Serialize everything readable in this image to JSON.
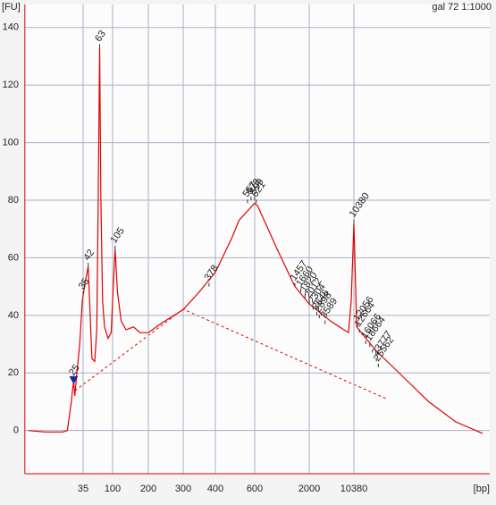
{
  "chart_data": {
    "type": "line",
    "y_label": "[FU]",
    "x_label": "[bp]",
    "sample_label": "gal 72 1:1000",
    "color": "#e00000",
    "x": [
      5,
      9,
      17,
      20,
      23,
      24,
      25,
      26,
      28,
      31,
      34,
      38,
      42,
      45,
      48,
      53,
      57,
      60,
      63,
      66,
      70,
      75,
      85,
      95,
      100,
      105,
      110,
      118,
      130,
      150,
      170,
      200,
      230,
      300,
      345,
      400,
      475,
      510,
      600,
      640,
      807,
      984,
      1457,
      2000,
      4400,
      8500,
      9400,
      10380,
      11500,
      22900,
      61200,
      164000,
      444000,
      1190000
    ],
    "values": [
      0,
      -0.5,
      -0.5,
      0,
      10,
      14,
      17,
      12,
      20,
      30,
      45,
      52,
      57,
      40,
      25,
      24,
      35,
      80,
      133,
      80,
      45,
      36,
      32,
      34,
      45,
      63,
      48,
      38,
      35,
      36,
      34,
      34,
      37,
      42,
      48,
      55,
      67,
      73,
      79,
      78,
      70,
      63,
      50,
      44,
      38,
      34,
      45,
      72,
      36,
      28,
      19,
      10,
      3,
      -1
    ],
    "peaks": [
      {
        "size": 25,
        "fu": 17,
        "color": "#000000"
      },
      {
        "size": 35,
        "fu": 47,
        "color": "#6a9a2a"
      },
      {
        "size": 42,
        "fu": 57,
        "color": "#000000"
      },
      {
        "size": 63,
        "fu": 133,
        "color": "#000000"
      },
      {
        "size": 105,
        "fu": 63,
        "color": "#000000"
      },
      {
        "size": 378,
        "fu": 50,
        "color": "#000000"
      },
      {
        "size": 557,
        "fu": 79,
        "color": "#000000"
      },
      {
        "size": 578,
        "fu": 80,
        "color": "#000000"
      },
      {
        "size": 599,
        "fu": 80,
        "color": "#000000"
      },
      {
        "size": 621,
        "fu": 79,
        "color": "#000000"
      },
      {
        "size": 1457,
        "fu": 50,
        "color": "#000000"
      },
      {
        "size": 1660,
        "fu": 48,
        "color": "#000000"
      },
      {
        "size": 1820,
        "fu": 46,
        "color": "#000000"
      },
      {
        "size": 2012,
        "fu": 44,
        "color": "#000000"
      },
      {
        "size": 2304,
        "fu": 42,
        "color": "#000000"
      },
      {
        "size": 2646,
        "fu": 40,
        "color": "#000000"
      },
      {
        "size": 2898,
        "fu": 39,
        "color": "#000000"
      },
      {
        "size": 3589,
        "fu": 37,
        "color": "#000000"
      },
      {
        "size": 10380,
        "fu": 72,
        "color": "#8a3ae0"
      },
      {
        "size": 12056,
        "fu": 36,
        "color": "#000000"
      },
      {
        "size": 12664,
        "fu": 34,
        "color": "#000000"
      },
      {
        "size": 16066,
        "fu": 30,
        "color": "#000000"
      },
      {
        "size": 18664,
        "fu": 29,
        "color": "#000000"
      },
      {
        "size": 23777,
        "fu": 24,
        "color": "#000000"
      },
      {
        "size": 25562,
        "fu": 22,
        "color": "#000000"
      }
    ],
    "xlim": [
      4.4,
      1550000
    ],
    "xticks": [
      35,
      100,
      200,
      300,
      400,
      600,
      2000,
      10380
    ],
    "ylim": [
      -15,
      148
    ],
    "yticks": [
      0,
      20,
      40,
      60,
      80,
      100,
      120,
      140
    ],
    "grid": true
  }
}
